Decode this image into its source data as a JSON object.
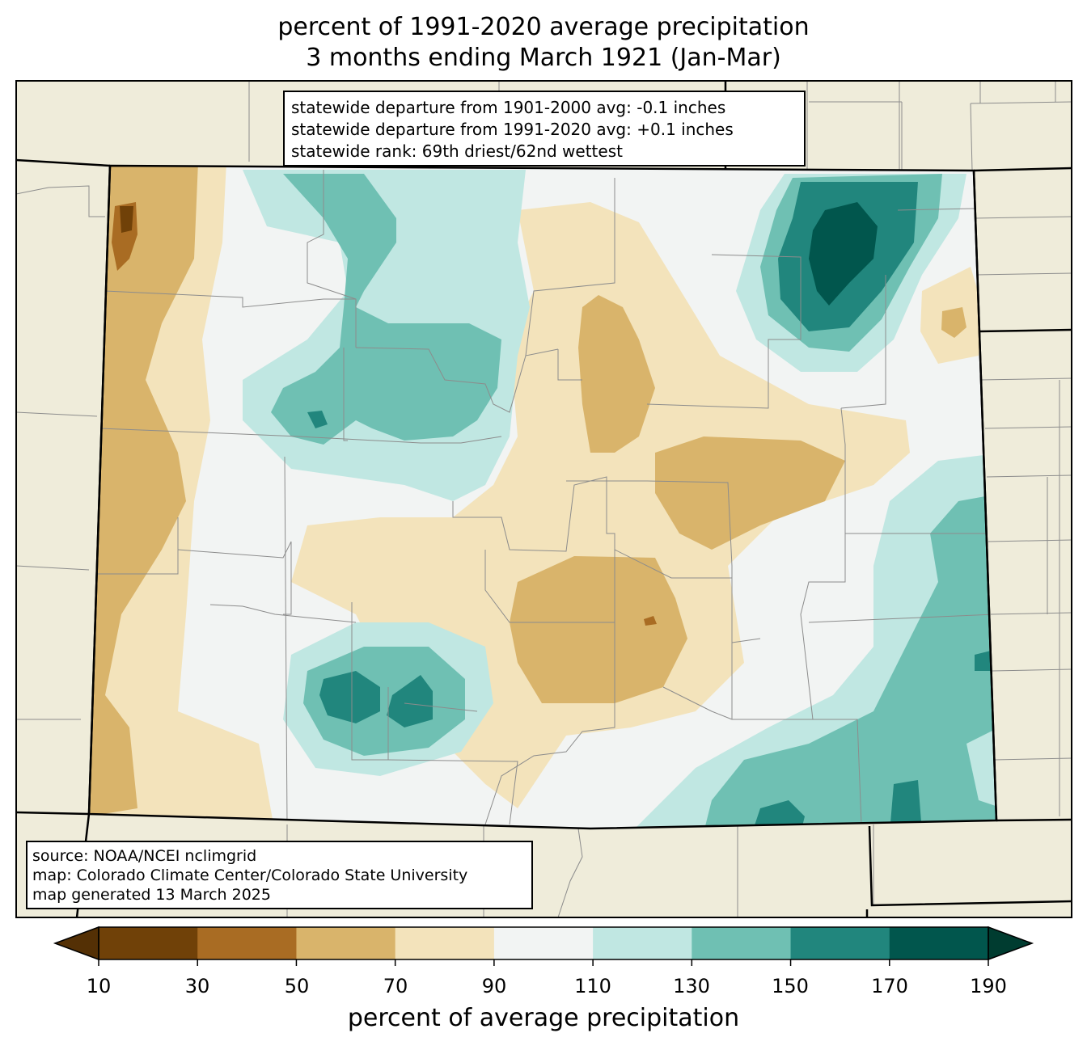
{
  "title": {
    "line1": "percent of 1991-2020 average precipitation",
    "line2": "3 months ending March 1921 (Jan-Mar)"
  },
  "stats": {
    "line1": "statewide departure from 1901-2000 avg: -0.1 inches",
    "line2": "statewide departure from 1991-2020 avg: +0.1 inches",
    "line3": "statewide rank: 69th driest/62nd wettest"
  },
  "source": {
    "line1": "source: NOAA/NCEI nclimgrid",
    "line2": "map: Colorado Climate Center/Colorado State University",
    "line3": "map generated 13 March 2025"
  },
  "colorbar": {
    "label": "percent of average precipitation",
    "ticks": [
      "10",
      "30",
      "50",
      "70",
      "90",
      "110",
      "130",
      "150",
      "170",
      "190"
    ],
    "under_color": "#543005",
    "over_color": "#003c30",
    "colors": [
      "#704108",
      "#a96c23",
      "#d9b46b",
      "#f3e3bb",
      "#f2f4f3",
      "#c0e7e2",
      "#6fc0b3",
      "#21867d",
      "#01564d"
    ]
  },
  "map_colors": {
    "background": "#efecda",
    "state_border": "#000000",
    "county_border": "#808080"
  }
}
